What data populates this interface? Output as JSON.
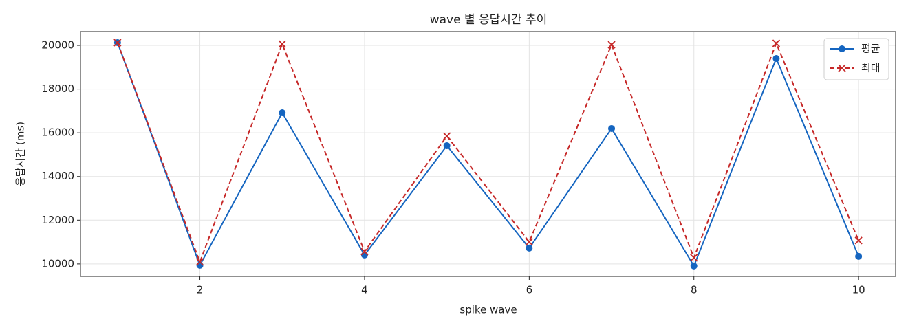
{
  "chart_data": {
    "type": "line",
    "title": "wave 별 응답시간 추이",
    "x_label": "spike wave",
    "y_label": "응답시간 (ms)",
    "x": [
      1,
      2,
      3,
      4,
      5,
      6,
      7,
      8,
      9,
      10
    ],
    "series": [
      {
        "name": "평균",
        "color": "#1565c0",
        "marker": "o",
        "dashed": false,
        "values": [
          20126,
          9937,
          16918,
          10409,
          15409,
          10723,
          16195,
          9906,
          19403,
          10346
        ]
      },
      {
        "name": "최대",
        "color": "#c62828",
        "marker": "x",
        "dashed": true,
        "values": [
          20126,
          10094,
          20063,
          10566,
          15849,
          11006,
          20031,
          10283,
          20094,
          11069
        ]
      }
    ],
    "xlim": [
      0.55,
      10.45
    ],
    "xticks": [
      2,
      4,
      6,
      8,
      10
    ],
    "ylim": [
      9430,
      20630
    ],
    "yticks": [
      10000,
      12000,
      14000,
      16000,
      18000,
      20000
    ],
    "grid": true,
    "legend": "upper right"
  }
}
